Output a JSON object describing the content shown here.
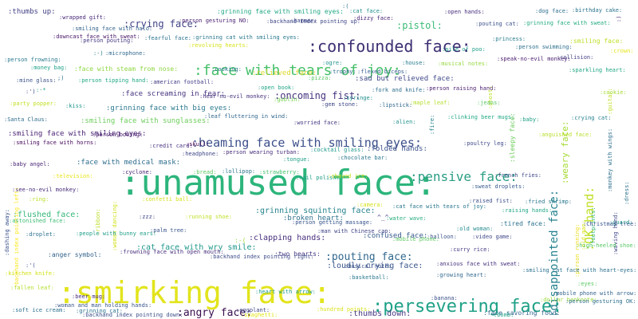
{
  "words": [
    {
      "text": ":unamused face:",
      "color": "#2db57c"
    },
    {
      "text": ":smirking face:",
      "color": "#e2e41c"
    },
    {
      "text": ":confounded face:",
      "color": "#3e2f73"
    },
    {
      "text": ":face with tears of joy:",
      "color": "#46c06a"
    },
    {
      "text": ":persevering face:",
      "color": "#1fa187"
    },
    {
      "text": ":beaming face with smiling eyes:",
      "color": "#3b4f8a"
    },
    {
      "text": ":pensive face:",
      "color": "#2a9d84"
    },
    {
      "text": ":disappointed face:",
      "color": "#26828e"
    },
    {
      "text": ":OK hand:",
      "color": "#bfdf25"
    },
    {
      "text": ":weary face:",
      "color": "#a7db35"
    },
    {
      "text": ":crying face:",
      "color": "#414487"
    },
    {
      "text": ":pistol:",
      "color": "#3bbc76"
    },
    {
      "text": ":angry face:",
      "color": "#3a0f4f"
    },
    {
      "text": ":pouting face:",
      "color": "#31688e"
    },
    {
      "text": ":oncoming fist:",
      "color": "#46337e"
    },
    {
      "text": ":flushed face:",
      "color": "#35b779"
    },
    {
      "text": ":cat face with wry smile:",
      "color": "#1f988b"
    },
    {
      "text": ":loudly crying face:",
      "color": "#39568c"
    },
    {
      "text": ":thumbs down:",
      "color": "#443983"
    },
    {
      "text": ":grinning squinting face:",
      "color": "#26828e"
    },
    {
      "text": ":face with medical mask:",
      "color": "#2e6e8e"
    },
    {
      "text": ":smiling face with smiling eyes:",
      "color": "#482173"
    },
    {
      "text": ":face screaming in fear:",
      "color": "#46327e"
    },
    {
      "text": ":relieved face:",
      "color": "#ddd82b"
    },
    {
      "text": ":sad but relieved face:",
      "color": "#3f4889"
    },
    {
      "text": ":grinning face with big eyes:",
      "color": "#2a788e"
    },
    {
      "text": ":face with steam from nose:",
      "color": "#8fd744"
    },
    {
      "text": ":confused face:",
      "color": "#375a8c"
    },
    {
      "text": ":folded hands:",
      "color": "#3b528b"
    },
    {
      "text": ":smiling face with sunglasses:",
      "color": "#6ccd5a"
    },
    {
      "text": ":clapping hands:",
      "color": "#472d7b"
    },
    {
      "text": ":broken heart:",
      "color": "#2d708e"
    },
    {
      "text": ":grinning face with smiling eyes:",
      "color": "#22a884"
    },
    {
      "text": ":tired face:",
      "color": "#2c728e"
    },
    {
      "text": ":sleepy face:",
      "color": "#6ccd5a"
    },
    {
      "text": ":thumbs up:",
      "color": "#424086"
    },
    {
      "text": ":anger symbol:",
      "color": "#33638d"
    },
    {
      "text": ":two hearts:",
      "color": "#453781"
    },
    {
      "text": ":hundred points:",
      "color": "#d8e219"
    },
    {
      "text": ":backhand index pointing down:",
      "color": "#3c4f8a"
    },
    {
      "text": ":face savoring food:",
      "color": "#31678e"
    },
    {
      "text": ":grinning cat:",
      "color": "#2c738e"
    },
    {
      "text": ":soft ice cream:",
      "color": "#2d718e"
    },
    {
      "text": ":smiling face:",
      "color": "#bddf26"
    },
    {
      "text": ":cat face:",
      "color": "#21918c"
    },
    {
      "text": ":open hands:",
      "color": "#472f7d"
    },
    {
      "text": ":dog face:",
      "color": "#2e6f8e"
    },
    {
      "text": ":birthday cake:",
      "color": "#2b748e"
    },
    {
      "text": ":person gesturing NO:",
      "color": "#481f70"
    },
    {
      "text": ":revolving hearts:",
      "color": "#d5e21a"
    },
    {
      "text": ":hammer:",
      "color": "#3e4a89"
    },
    {
      "text": ":backhand index pointing up:",
      "color": "#3f4788"
    },
    {
      "text": ":grinning face with sweat:",
      "color": "#25ab82"
    },
    {
      "text": ":pouting cat:",
      "color": "#3b518b"
    },
    {
      "text": ":wrapped gift:",
      "color": "#482878"
    },
    {
      "text": ":smiling face with halo:",
      "color": "#33638d"
    },
    {
      "text": ":downcast face with sweat:",
      "color": "#471365"
    },
    {
      "text": ":person pouting:",
      "color": "#453882"
    },
    {
      "text": ":fearful face:",
      "color": "#2c738e"
    },
    {
      "text": ":grinning cat with smiling eyes:",
      "color": "#2a788e"
    },
    {
      "text": ":dizzy face:",
      "color": "#482374"
    },
    {
      "text": ":princess:",
      "color": "#287d8e"
    },
    {
      "text": ":person swimming:",
      "color": "#2d708e"
    },
    {
      "text": ":crown:",
      "color": "#e5e419"
    },
    {
      "text": ":microphone:",
      "color": "#31688e"
    },
    {
      "text": ":pile of poo:",
      "color": "#1f9e89"
    },
    {
      "text": ":speak-no-evil monkey:",
      "color": "#481a6c"
    },
    {
      "text": ":collision:",
      "color": "#423f85"
    },
    {
      "text": ":person frowning:",
      "color": "#29798e"
    },
    {
      "text": ":money bag:",
      "color": "#1fa287"
    },
    {
      "text": ":ogre:",
      "color": "#20928c"
    },
    {
      "text": ":house:",
      "color": "#287c8e"
    },
    {
      "text": ":musical notes:",
      "color": "#95d840"
    },
    {
      "text": ":sparkling heart:",
      "color": "#21a685"
    },
    {
      "text": ":guitar:",
      "color": "#c0df25"
    },
    {
      "text": ":cooking:",
      "color": "#2b758e"
    },
    {
      "text": ":trophy:",
      "color": "#31688e"
    },
    {
      "text": ":flexed biceps:",
      "color": "#355f8d"
    },
    {
      "text": ":mine glass:",
      "color": "#3b528b"
    },
    {
      "text": ":person tipping hand:",
      "color": "#22a884"
    },
    {
      "text": ":american football:",
      "color": "#433e85"
    },
    {
      "text": ":pizza:",
      "color": "#58c765"
    },
    {
      "text": ":person raising hand:",
      "color": "#481c6e"
    },
    {
      "text": ":open book:",
      "color": "#20a486"
    },
    {
      "text": ":ghost:",
      "color": "#bddf26"
    },
    {
      "text": ":hear-no-evil monkey:",
      "color": "#46337e"
    },
    {
      "text": ":goblin:",
      "color": "#77d153"
    },
    {
      "text": ":fork and knife:",
      "color": "#2e6e8e"
    },
    {
      "text": ":syringe:",
      "color": "#218f8d"
    },
    {
      "text": ":cookie:",
      "color": "#a5db36"
    },
    {
      "text": ":monkey with wings:",
      "color": "#2e6f8e"
    },
    {
      "text": ":party popper:",
      "color": "#c2df23"
    },
    {
      "text": ":kiss:",
      "color": "#1f958b"
    },
    {
      "text": ":gem stone:",
      "color": "#3f4889"
    },
    {
      "text": ":lipstick:",
      "color": "#31688e"
    },
    {
      "text": ":jeans:",
      "color": "#58c765"
    },
    {
      "text": ":leaf fluttering in wind:",
      "color": "#31678e"
    },
    {
      "text": ":maple leaf:",
      "color": "#b5de2b"
    },
    {
      "text": ":fire:",
      "color": "#25838e"
    },
    {
      "text": ":clinking beer mugs:",
      "color": "#22a884"
    },
    {
      "text": ":crying cat:",
      "color": "#277f8e"
    },
    {
      "text": ":Santa Claus:",
      "color": "#2f6c8e"
    },
    {
      "text": ":worried face:",
      "color": "#453781"
    },
    {
      "text": ":alien:",
      "color": "#21918c"
    },
    {
      "text": ":baby:",
      "color": "#1fa088"
    },
    {
      "text": ":smiling face with horns:",
      "color": "#46085c"
    },
    {
      "text": ":person bowing:",
      "color": "#481b6d"
    },
    {
      "text": ":anguished face:",
      "color": "#b8de29"
    },
    {
      "text": ":credit card:",
      "color": "#46307e"
    },
    {
      "text": ":skull:",
      "color": "#440154"
    },
    {
      "text": ":cocktail glass:",
      "color": "#1f9a8a"
    },
    {
      "text": ":poultry leg:",
      "color": "#3e4989"
    },
    {
      "text": ":headphone:",
      "color": "#3f4788"
    },
    {
      "text": ":person wearing turban:",
      "color": "#472d7b"
    },
    {
      "text": ":tongue:",
      "color": "#1f9f88"
    },
    {
      "text": ":chocolate bar:",
      "color": "#2a778e"
    },
    {
      "text": ":baby angel:",
      "color": "#482576"
    },
    {
      "text": ":bread:",
      "color": "#5cc863"
    },
    {
      "text": ":lollipop:",
      "color": "#2b758e"
    },
    {
      "text": ":strawberry:",
      "color": "#48c16e"
    },
    {
      "text": ":nail polish:",
      "color": "#1f9e89"
    },
    {
      "text": ":shaved ice:",
      "color": "#c8e020"
    },
    {
      "text": ":french fries:",
      "color": "#3f4889"
    },
    {
      "text": ":dress:",
      "color": "#2c738e"
    },
    {
      "text": ":footprints:",
      "color": "#32b67a"
    },
    {
      "text": ":sweat droplets:",
      "color": "#375b8d"
    },
    {
      "text": ":cyclone:",
      "color": "#482173"
    },
    {
      "text": ":television:",
      "color": "#e7e419"
    },
    {
      "text": ":dashing away:",
      "color": "#3b518b"
    },
    {
      "text": ":see-no-evil monkey:",
      "color": "#472c7a"
    },
    {
      "text": ":backhand index pointing left:",
      "color": "#fde725"
    },
    {
      "text": ":ring:",
      "color": "#bade28"
    },
    {
      "text": ":confetti ball:",
      "color": "#d0e11c"
    },
    {
      "text": ":camera:",
      "color": "#d2e21b"
    },
    {
      "text": ":cat face with tears of joy:",
      "color": "#2a788e"
    },
    {
      "text": ":raised fist:",
      "color": "#3d4e8a"
    },
    {
      "text": ":woman dancing:",
      "color": "#d0e11c"
    },
    {
      "text": ":fried shrimp:",
      "color": "#2a788e"
    },
    {
      "text": ":ribbon:",
      "color": "#bade28"
    },
    {
      "text": ":astonished face:",
      "color": "#3dbc74"
    },
    {
      "text": ":running shoe:",
      "color": "#bddf26"
    },
    {
      "text": ":person getting massage:",
      "color": "#39558c"
    },
    {
      "text": ":water wave:",
      "color": "#29af7f"
    },
    {
      "text": ":raising hands:",
      "color": "#22a785"
    },
    {
      "text": ":person running:",
      "color": "#ecdd1b"
    },
    {
      "text": ":Christmas tree:",
      "color": "#3a548c"
    },
    {
      "text": ":old man:",
      "color": "#d8e219"
    },
    {
      "text": ":guard:",
      "color": "#1f968b"
    },
    {
      "text": ":waving hand:",
      "color": "#3f4788"
    },
    {
      "text": ":droplet:",
      "color": "#2d708e"
    },
    {
      "text": ":people with bunny ears:",
      "color": "#1f9e89"
    },
    {
      "text": ":palm tree:",
      "color": "#39568c"
    },
    {
      "text": ":man with Chinese cap:",
      "color": "#404387"
    },
    {
      "text": ":old woman:",
      "color": "#238a8d"
    },
    {
      "text": ":video game:",
      "color": "#3f4788"
    },
    {
      "text": ":balloon:",
      "color": "#3b528b"
    },
    {
      "text": ":mobile phone:",
      "color": "#5ec962"
    },
    {
      "text": ":high-heeled shoe:",
      "color": "#58c765"
    },
    {
      "text": ":frowning face with open mouth:",
      "color": "#472f7d"
    },
    {
      "text": ":backhand index pointing right:",
      "color": "#3e4c8a"
    },
    {
      "text": ":curry rice:",
      "color": "#453882"
    },
    {
      "text": ":anxious face with sweat:",
      "color": "#46337e"
    },
    {
      "text": ":kitchen knife:",
      "color": "#d2e21b"
    },
    {
      "text": ":musical note:",
      "color": "#3b528b"
    },
    {
      "text": ":smiling cat face with heart-eyes:",
      "color": "#2c728e"
    },
    {
      "text": ":basketball:",
      "color": "#2a788e"
    },
    {
      "text": ":growing heart:",
      "color": "#31688e"
    },
    {
      "text": ":eyes:",
      "color": "#5cc863"
    },
    {
      "text": ":mobile phone with arrow:",
      "color": "#33638d"
    },
    {
      "text": ":fallen leaf:",
      "color": "#b5de2b"
    },
    {
      "text": ":beer mug:",
      "color": "#472d7b"
    },
    {
      "text": ":heart with arrow:",
      "color": "#1f9a8a"
    },
    {
      "text": ":banana:",
      "color": "#3b528b"
    },
    {
      "text": ":dollar banknote:",
      "color": "#9bd93c"
    },
    {
      "text": ":person gesturing OK:",
      "color": "#2e6e8e"
    },
    {
      "text": ":woman and man holding hands:",
      "color": "#39568c"
    },
    {
      "text": ":eggplant:",
      "color": "#3f4788"
    },
    {
      "text": ":spaghetti:",
      "color": "#e2e418"
    },
    {
      "text": ":bomb:",
      "color": "#1fa188"
    },
    {
      "text": ":(",
      "color": "#2c728e"
    },
    {
      "text": ":)",
      "color": "#482677"
    },
    {
      "text": ";)",
      "color": "#2c728e"
    },
    {
      "text": ":-)",
      "color": "#2a788e"
    },
    {
      "text": ":')",
      "color": "#3e4a89"
    },
    {
      "text": ":'(",
      "color": "#3b528b"
    },
    {
      "text": "^_^",
      "color": "#46337e"
    },
    {
      "text": ":zzz:",
      "color": "#3f4788"
    },
    {
      "text": ":-*",
      "color": "#1fa187"
    },
    {
      "text": ":-(",
      "color": "#9bd93c"
    }
  ]
}
